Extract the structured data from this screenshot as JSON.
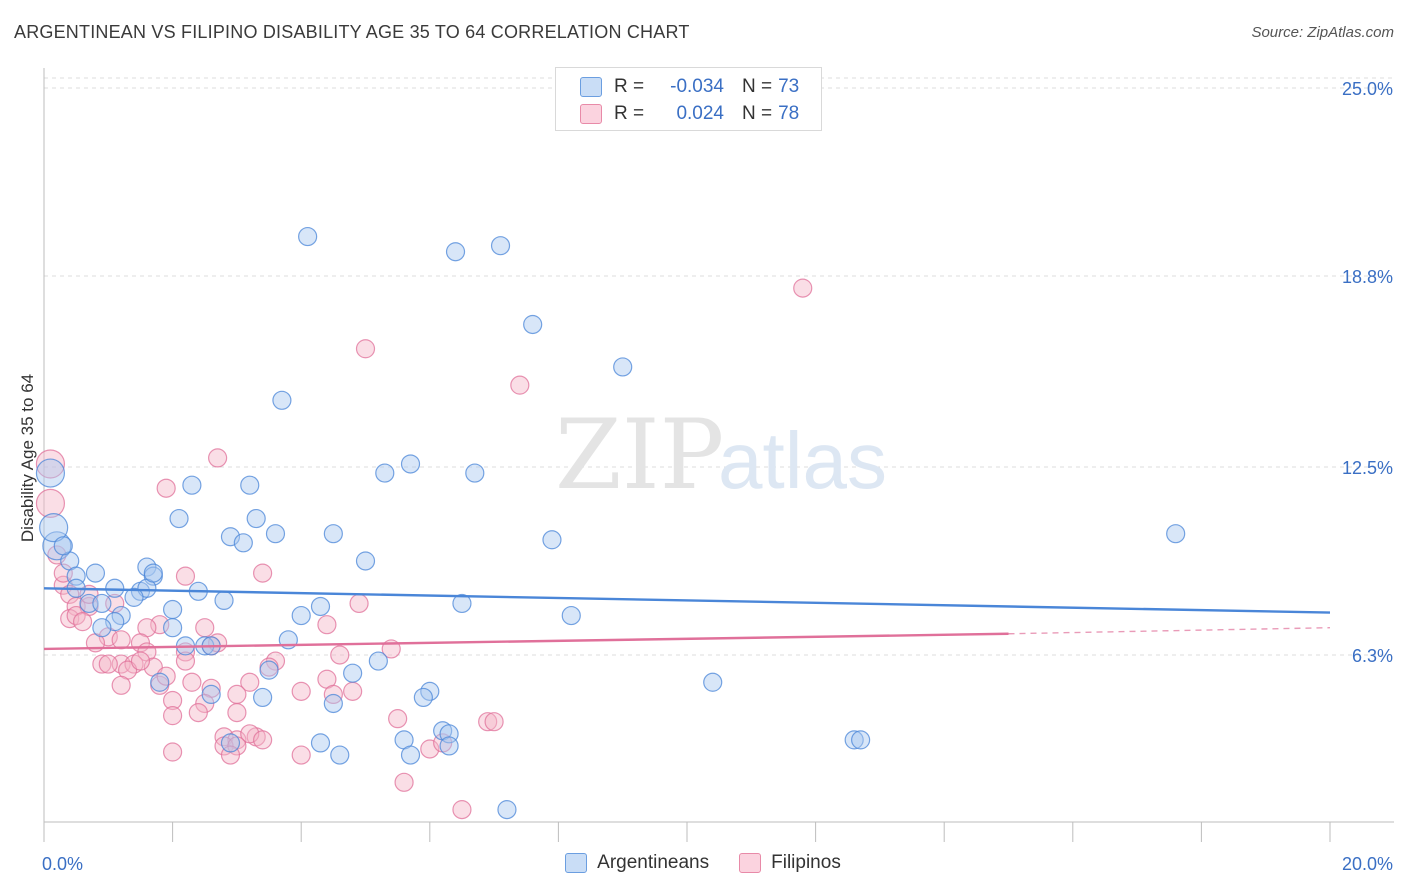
{
  "title": "ARGENTINEAN VS FILIPINO DISABILITY AGE 35 TO 64 CORRELATION CHART",
  "source": "Source: ZipAtlas.com",
  "watermark": {
    "zip": "ZIP",
    "atlas": "atlas"
  },
  "legend_top": [
    {
      "label": "R =",
      "r_value": "-0.034",
      "n_label": "N =",
      "n_value": "73",
      "color": "#a9c8f0"
    },
    {
      "label": "R =",
      "r_value": "0.024",
      "n_label": "N =",
      "n_value": "78",
      "color": "#f5b5c8"
    }
  ],
  "legend_bottom": [
    {
      "label": "Argentineans",
      "color": "#a9c8f0"
    },
    {
      "label": "Filipinos",
      "color": "#f5b5c8"
    }
  ],
  "chart_data": {
    "type": "scatter",
    "title": "ARGENTINEAN VS FILIPINO DISABILITY AGE 35 TO 64 CORRELATION CHART",
    "xlabel": "",
    "ylabel": "Disability Age 35 to 64",
    "xlim": [
      0,
      20
    ],
    "ylim": [
      0,
      25.0
    ],
    "x_tick_labels": [
      {
        "value": 0,
        "label": "0.0%"
      },
      {
        "value": 20,
        "label": "20.0%"
      }
    ],
    "y_tick_labels": [
      {
        "value": 6.3,
        "label": "6.3%"
      },
      {
        "value": 12.5,
        "label": "12.5%"
      },
      {
        "value": 18.8,
        "label": "18.8%"
      },
      {
        "value": 25.0,
        "label": "25.0%"
      }
    ],
    "grid": true,
    "series": [
      {
        "name": "Argentineans",
        "color": "#4a86d8",
        "fill": "#a9c8f0",
        "trend": {
          "x": [
            0,
            20
          ],
          "y": [
            8.5,
            7.7
          ],
          "dashed_from": null
        },
        "points": [
          [
            4.1,
            20.1
          ],
          [
            6.4,
            19.6
          ],
          [
            7.1,
            19.8
          ],
          [
            7.6,
            17.2
          ],
          [
            9.0,
            15.8
          ],
          [
            3.7,
            14.7
          ],
          [
            5.7,
            12.6
          ],
          [
            5.3,
            12.3
          ],
          [
            6.7,
            12.3
          ],
          [
            2.3,
            11.9
          ],
          [
            3.2,
            11.9
          ],
          [
            2.1,
            10.8
          ],
          [
            3.3,
            10.8
          ],
          [
            3.6,
            10.3
          ],
          [
            4.5,
            10.3
          ],
          [
            2.9,
            10.2
          ],
          [
            3.1,
            10.0
          ],
          [
            7.9,
            10.1
          ],
          [
            17.6,
            10.3
          ],
          [
            0.2,
            9.9
          ],
          [
            0.4,
            9.4
          ],
          [
            0.8,
            9.0
          ],
          [
            1.6,
            9.2
          ],
          [
            5.0,
            9.4
          ],
          [
            0.5,
            8.9
          ],
          [
            1.7,
            8.9
          ],
          [
            0.5,
            8.5
          ],
          [
            1.1,
            8.5
          ],
          [
            1.5,
            8.4
          ],
          [
            1.6,
            8.5
          ],
          [
            2.4,
            8.4
          ],
          [
            1.4,
            8.2
          ],
          [
            2.8,
            8.1
          ],
          [
            0.7,
            8.0
          ],
          [
            0.9,
            8.0
          ],
          [
            1.2,
            7.6
          ],
          [
            4.3,
            7.9
          ],
          [
            6.5,
            8.0
          ],
          [
            2.0,
            7.8
          ],
          [
            4.0,
            7.6
          ],
          [
            8.2,
            7.6
          ],
          [
            1.1,
            7.4
          ],
          [
            0.9,
            7.2
          ],
          [
            2.0,
            7.2
          ],
          [
            3.8,
            6.8
          ],
          [
            2.2,
            6.6
          ],
          [
            2.5,
            6.6
          ],
          [
            2.6,
            6.6
          ],
          [
            5.2,
            6.1
          ],
          [
            3.5,
            5.8
          ],
          [
            4.8,
            5.7
          ],
          [
            10.4,
            5.4
          ],
          [
            1.8,
            5.4
          ],
          [
            2.6,
            5.0
          ],
          [
            6.0,
            5.1
          ],
          [
            5.9,
            4.9
          ],
          [
            3.4,
            4.9
          ],
          [
            4.5,
            4.7
          ],
          [
            6.2,
            3.8
          ],
          [
            6.3,
            3.7
          ],
          [
            5.6,
            3.5
          ],
          [
            4.3,
            3.4
          ],
          [
            2.9,
            3.4
          ],
          [
            6.3,
            3.3
          ],
          [
            12.6,
            3.5
          ],
          [
            12.7,
            3.5
          ],
          [
            4.6,
            3.0
          ],
          [
            5.7,
            3.0
          ],
          [
            7.2,
            1.2
          ],
          [
            0.1,
            12.3
          ],
          [
            0.15,
            10.5
          ],
          [
            0.3,
            9.9
          ],
          [
            1.7,
            9.0
          ]
        ]
      },
      {
        "name": "Filipinos",
        "color": "#e0709a",
        "fill": "#f5b5c8",
        "trend": {
          "x": [
            0,
            15.0
          ],
          "y": [
            6.5,
            7.0
          ],
          "dashed_from": 15.0,
          "dashed_to": [
            20,
            7.2
          ]
        },
        "points": [
          [
            11.8,
            18.4
          ],
          [
            5.0,
            16.4
          ],
          [
            7.4,
            15.2
          ],
          [
            2.7,
            12.8
          ],
          [
            1.9,
            11.8
          ],
          [
            0.1,
            12.6
          ],
          [
            0.1,
            11.3
          ],
          [
            0.2,
            9.6
          ],
          [
            0.3,
            8.6
          ],
          [
            0.4,
            8.3
          ],
          [
            0.5,
            7.9
          ],
          [
            0.7,
            7.9
          ],
          [
            0.7,
            8.3
          ],
          [
            1.1,
            8.0
          ],
          [
            0.4,
            7.5
          ],
          [
            0.5,
            7.6
          ],
          [
            0.6,
            7.4
          ],
          [
            2.2,
            8.9
          ],
          [
            3.4,
            9.0
          ],
          [
            4.9,
            8.0
          ],
          [
            4.4,
            7.3
          ],
          [
            1.8,
            7.3
          ],
          [
            1.6,
            7.2
          ],
          [
            2.5,
            7.2
          ],
          [
            1.0,
            6.9
          ],
          [
            0.8,
            6.7
          ],
          [
            1.2,
            6.8
          ],
          [
            1.5,
            6.7
          ],
          [
            2.6,
            6.6
          ],
          [
            1.6,
            6.4
          ],
          [
            2.2,
            6.4
          ],
          [
            2.7,
            6.7
          ],
          [
            5.4,
            6.5
          ],
          [
            1.2,
            6.0
          ],
          [
            1.4,
            6.0
          ],
          [
            1.7,
            5.9
          ],
          [
            0.9,
            6.0
          ],
          [
            1.3,
            5.8
          ],
          [
            3.6,
            6.1
          ],
          [
            3.5,
            5.9
          ],
          [
            4.6,
            6.3
          ],
          [
            4.4,
            5.5
          ],
          [
            2.2,
            6.1
          ],
          [
            2.3,
            5.4
          ],
          [
            1.8,
            5.3
          ],
          [
            1.2,
            5.3
          ],
          [
            2.6,
            5.2
          ],
          [
            3.2,
            5.4
          ],
          [
            4.0,
            5.1
          ],
          [
            4.8,
            5.1
          ],
          [
            4.5,
            5.0
          ],
          [
            3.0,
            5.0
          ],
          [
            2.0,
            4.8
          ],
          [
            2.5,
            4.7
          ],
          [
            3.0,
            4.4
          ],
          [
            2.4,
            4.4
          ],
          [
            2.0,
            4.3
          ],
          [
            5.5,
            4.2
          ],
          [
            6.9,
            4.1
          ],
          [
            7.0,
            4.1
          ],
          [
            2.8,
            3.6
          ],
          [
            3.0,
            3.5
          ],
          [
            3.3,
            3.6
          ],
          [
            3.2,
            3.7
          ],
          [
            2.8,
            3.3
          ],
          [
            3.0,
            3.3
          ],
          [
            3.4,
            3.5
          ],
          [
            6.0,
            3.2
          ],
          [
            6.2,
            3.4
          ],
          [
            2.0,
            3.1
          ],
          [
            2.9,
            3.0
          ],
          [
            4.0,
            3.0
          ],
          [
            5.6,
            2.1
          ],
          [
            6.5,
            1.2
          ],
          [
            1.0,
            6.0
          ],
          [
            0.3,
            9.0
          ],
          [
            1.9,
            5.6
          ],
          [
            1.5,
            6.1
          ]
        ]
      }
    ]
  }
}
